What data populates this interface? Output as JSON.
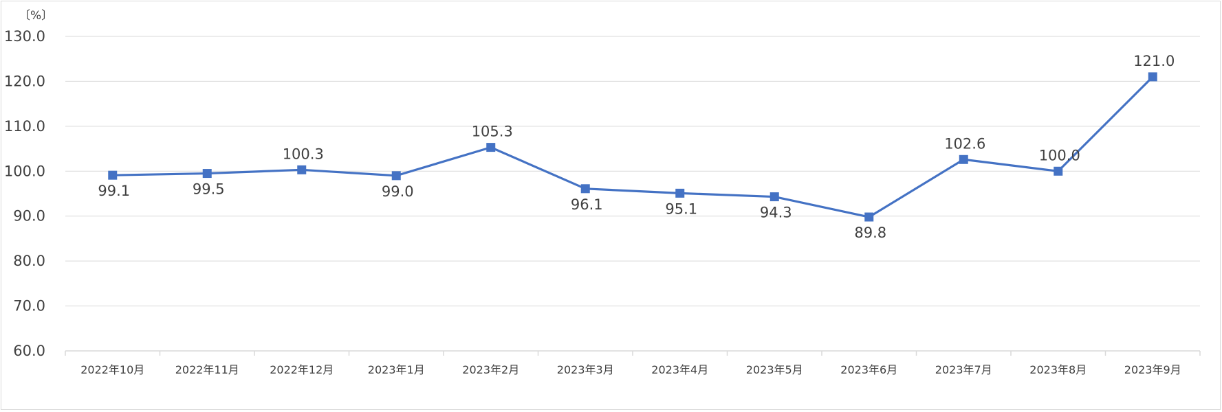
{
  "chart_data": {
    "type": "line",
    "y_unit_label": "〔%〕",
    "categories": [
      "2022年10月",
      "2022年11月",
      "2022年12月",
      "2023年1月",
      "2023年2月",
      "2023年3月",
      "2023年4月",
      "2023年5月",
      "2023年6月",
      "2023年7月",
      "2023年8月",
      "2023年9月"
    ],
    "series": [
      {
        "values": [
          99.1,
          99.5,
          100.3,
          99.0,
          105.3,
          96.1,
          95.1,
          94.3,
          89.8,
          102.6,
          100.0,
          121.0
        ],
        "data_labels": [
          "99.1",
          "99.5",
          "100.3",
          "99.0",
          "105.3",
          "96.1",
          "95.1",
          "94.3",
          "89.8",
          "102.6",
          "100.0",
          "121.0"
        ],
        "label_positions": [
          "below",
          "below",
          "above",
          "below",
          "above",
          "below",
          "below",
          "below",
          "below",
          "above",
          "above",
          "above"
        ],
        "color": "#4472c4",
        "marker": "square"
      }
    ],
    "ylim": [
      60,
      130
    ],
    "y_ticks": [
      60,
      70,
      80,
      90,
      100,
      110,
      120,
      130
    ],
    "y_tick_labels": [
      "60.0",
      "70.0",
      "80.0",
      "90.0",
      "100.0",
      "110.0",
      "120.0",
      "130.0"
    ],
    "grid": true,
    "gridline_color": "#d9d9d9",
    "text_color": "#404040",
    "legend": "none"
  }
}
